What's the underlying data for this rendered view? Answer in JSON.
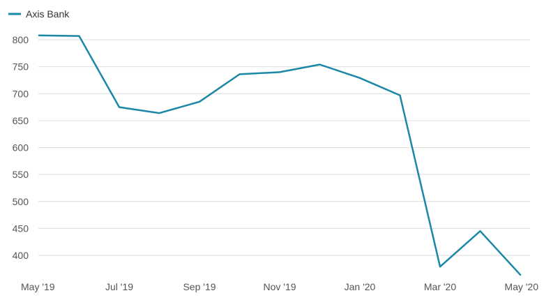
{
  "chart_data": {
    "type": "line",
    "legend": {
      "position": "top-left"
    },
    "series": [
      {
        "name": "Axis Bank",
        "color": "#1b87a6",
        "x": [
          "May '19",
          "Jun '19",
          "Jul '19",
          "Aug '19",
          "Sep '19",
          "Oct '19",
          "Nov '19",
          "Dec '19",
          "Jan '20",
          "Feb '20",
          "Mar '20",
          "Apr '20",
          "May '20"
        ],
        "values": [
          808,
          807,
          675,
          664,
          685,
          736,
          740,
          754,
          729,
          697,
          379,
          445,
          364
        ]
      }
    ],
    "x_tick_labels": [
      "May '19",
      "Jul '19",
      "Sep '19",
      "Nov '19",
      "Jan '20",
      "Mar '20",
      "May '20"
    ],
    "y_ticks": [
      400,
      450,
      500,
      550,
      600,
      650,
      700,
      750,
      800
    ],
    "ylim": [
      360,
      820
    ],
    "grid": true,
    "grid_color": "#dddddd",
    "title": "",
    "xlabel": "",
    "ylabel": ""
  }
}
